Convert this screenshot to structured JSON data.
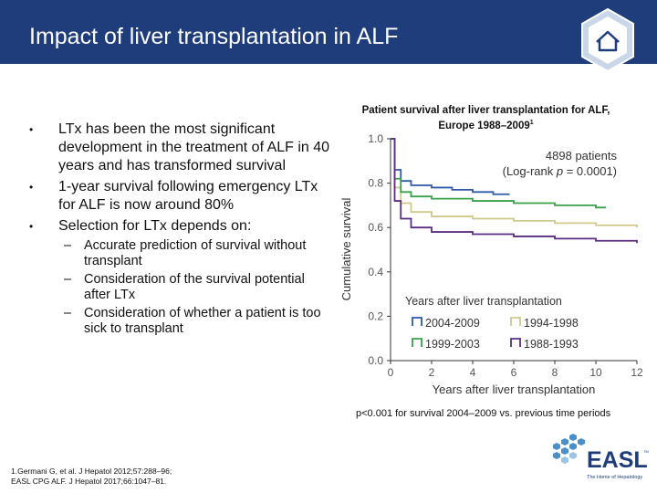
{
  "header": {
    "title": "Impact of liver transplantation in ALF"
  },
  "bullets": [
    {
      "marker": "•",
      "text": "LTx has been the most significant development in the treatment of ALF in 40 years and has transformed survival"
    },
    {
      "marker": "•",
      "text": "1-year survival following emergency LTx for ALF is now around 80%"
    },
    {
      "marker": "•",
      "text": "Selection for LTx depends on:"
    }
  ],
  "subbullets": [
    {
      "marker": "–",
      "text": "Accurate prediction of survival without transplant"
    },
    {
      "marker": "–",
      "text": "Consideration of the survival potential after LTx"
    },
    {
      "marker": "–",
      "text": "Consideration of whether a patient is too sick to transplant"
    }
  ],
  "chart_title": {
    "main": "Patient survival after liver transplantation for ALF, Europe 1988–2009",
    "sup": "1"
  },
  "chart_data": {
    "type": "line",
    "xlabel": "Years after liver transplantation",
    "ylabel": "Cumulative survival",
    "xlim": [
      0,
      12
    ],
    "ylim": [
      0,
      1.0
    ],
    "x_ticks": [
      "0",
      "2",
      "4",
      "6",
      "8",
      "10",
      "12"
    ],
    "y_ticks": [
      "0.0",
      "0.2",
      "0.4",
      "0.6",
      "0.8",
      "1.0"
    ],
    "annotation_line1": "4898 patients",
    "annotation_line2_prefix": "(Log-rank ",
    "annotation_line2_p": "p",
    "annotation_line2_suffix": " = 0.0001)",
    "legend_title": "Years after liver transplantation",
    "series": [
      {
        "name": "2004-2009",
        "color": "#2e5aa8",
        "x": [
          0,
          0.2,
          0.5,
          1,
          2,
          3,
          4,
          5,
          5.8
        ],
        "y": [
          1.0,
          0.86,
          0.81,
          0.79,
          0.78,
          0.77,
          0.76,
          0.75,
          0.75
        ]
      },
      {
        "name": "1994-1998",
        "color": "#cfc98a",
        "x": [
          0,
          0.2,
          0.5,
          1,
          2,
          4,
          6,
          8,
          10,
          12
        ],
        "y": [
          1.0,
          0.78,
          0.71,
          0.67,
          0.65,
          0.64,
          0.63,
          0.62,
          0.61,
          0.6
        ]
      },
      {
        "name": "1999-2003",
        "color": "#3aa04a",
        "x": [
          0,
          0.2,
          0.5,
          1,
          2,
          4,
          6,
          8,
          10,
          10.5
        ],
        "y": [
          1.0,
          0.82,
          0.76,
          0.74,
          0.73,
          0.72,
          0.71,
          0.7,
          0.69,
          0.69
        ]
      },
      {
        "name": "1988-1993",
        "color": "#5a2d82",
        "x": [
          0,
          0.2,
          0.5,
          1,
          2,
          4,
          6,
          8,
          10,
          12
        ],
        "y": [
          1.0,
          0.72,
          0.64,
          0.6,
          0.58,
          0.57,
          0.56,
          0.55,
          0.54,
          0.53
        ]
      }
    ],
    "footnote": "p<0.001 for survival 2004–2009 vs. previous time periods"
  },
  "references": [
    "1.Germani G, et al. J Hepatol 2012;57:288–96;",
    "EASL CPG ALF. J Hepatol 2017;66:1047–81."
  ],
  "logo": {
    "wordmark": "EASL",
    "tagline": "The Home of Hepatology",
    "tm": "TM"
  },
  "colors": {
    "header_bg": "#1f3d7a",
    "accent": "#4a90c8"
  },
  "icons": {
    "home": "home-icon"
  }
}
